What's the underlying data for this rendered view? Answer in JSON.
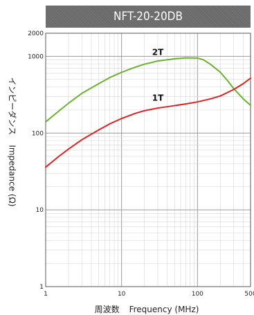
{
  "chart_data": {
    "type": "line",
    "title": "NFT-20-20DB",
    "xlabel_jp": "周波数",
    "xlabel_en": "Frequency (MHz)",
    "ylabel_jp": "インピーダンス",
    "ylabel_en": "Impedance (Ω)",
    "xscale": "log",
    "yscale": "log",
    "xlim": [
      1,
      500
    ],
    "ylim": [
      1,
      2000
    ],
    "grid": true,
    "x_ticks": [
      "1",
      "10",
      "100",
      "500"
    ],
    "y_ticks": [
      "1",
      "10",
      "100",
      "1000",
      "2000"
    ],
    "series": [
      {
        "name": "2T",
        "color": "#6ab22e",
        "x": [
          1,
          1.5,
          2,
          3,
          5,
          7,
          10,
          15,
          20,
          30,
          50,
          70,
          100,
          120,
          150,
          200,
          250,
          300,
          400,
          500
        ],
        "y": [
          140,
          195,
          245,
          330,
          440,
          530,
          620,
          720,
          790,
          870,
          930,
          955,
          950,
          900,
          780,
          620,
          480,
          380,
          280,
          230
        ]
      },
      {
        "name": "1T",
        "color": "#e02020",
        "x": [
          1,
          1.5,
          2,
          3,
          5,
          7,
          10,
          15,
          20,
          30,
          50,
          70,
          100,
          150,
          200,
          300,
          400,
          500
        ],
        "y": [
          36,
          50,
          62,
          82,
          110,
          132,
          155,
          180,
          196,
          212,
          228,
          240,
          255,
          280,
          305,
          370,
          440,
          520
        ]
      }
    ]
  }
}
